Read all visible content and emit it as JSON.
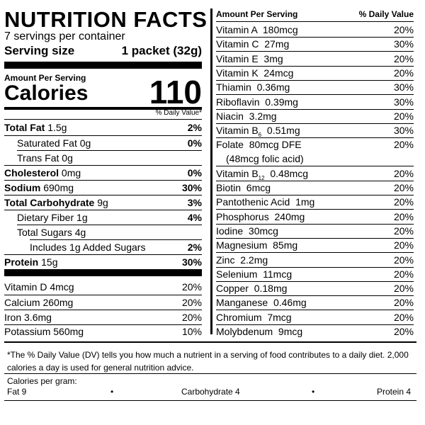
{
  "label": {
    "title": "NUTRITION FACTS",
    "servings_per_container": "7 servings per container",
    "serving_size_label": "Serving size",
    "serving_size_value": "1 packet (32g)",
    "amount_per_serving": "Amount Per Serving",
    "calories_label": "Calories",
    "calories_value": "110",
    "dv_header": "% Daily Value*",
    "nutrients": [
      {
        "name": "Total Fat",
        "amount": "1.5g",
        "dv": "2%"
      },
      {
        "name": "Saturated Fat",
        "amount": "0g",
        "dv": "0%"
      },
      {
        "name": "Trans Fat",
        "amount": "0g",
        "dv": ""
      },
      {
        "name": "Cholesterol",
        "amount": "0mg",
        "dv": "0%"
      },
      {
        "name": "Sodium",
        "amount": "690mg",
        "dv": "30%"
      },
      {
        "name": "Total Carbohydrate",
        "amount": "9g",
        "dv": "3%"
      },
      {
        "name": "Dietary Fiber",
        "amount": "1g",
        "dv": "4%"
      },
      {
        "name": "Total Sugars",
        "amount": "4g",
        "dv": ""
      },
      {
        "name": "Includes 1g Added Sugars",
        "amount": "",
        "dv": "2%"
      },
      {
        "name": "Protein",
        "amount": "15g",
        "dv": "30%"
      }
    ],
    "vitamins_left": [
      {
        "name": "Vitamin D 4mcg",
        "dv": "20%"
      },
      {
        "name": "Calcium 260mg",
        "dv": "20%"
      },
      {
        "name": "Iron 3.6mg",
        "dv": "20%"
      },
      {
        "name": "Potassium 560mg",
        "dv": "10%"
      }
    ],
    "right_header": {
      "amount": "Amount Per Serving",
      "dv": "% Daily Value"
    },
    "vitamins_right": [
      {
        "name": "Vitamin A  180mcg",
        "dv": "20%"
      },
      {
        "name": "Vitamin C  27mg",
        "dv": "30%"
      },
      {
        "name": "Vitamin E  3mg",
        "dv": "20%"
      },
      {
        "name": "Vitamin K  24mcg",
        "dv": "20%"
      },
      {
        "name": "Thiamin  0.36mg",
        "dv": "30%"
      },
      {
        "name": "Riboflavin  0.39mg",
        "dv": "30%"
      },
      {
        "name": "Niacin  3.2mg",
        "dv": "20%"
      },
      {
        "name": "Vitamin B",
        "sub": "6",
        "rest": "  0.51mg",
        "dv": "30%"
      },
      {
        "name": "Folate  80mcg DFE",
        "line2": "(48mcg folic acid)",
        "dv": "20%"
      },
      {
        "name": "Vitamin B",
        "sub": "12",
        "rest": "  0.48mcg",
        "dv": "20%"
      },
      {
        "name": "Biotin  6mcg",
        "dv": "20%"
      },
      {
        "name": "Pantothenic Acid  1mg",
        "dv": "20%"
      },
      {
        "name": "Phosphorus  240mg",
        "dv": "20%"
      },
      {
        "name": "Iodine  30mcg",
        "dv": "20%"
      },
      {
        "name": "Magnesium  85mg",
        "dv": "20%"
      },
      {
        "name": "Zinc  2.2mg",
        "dv": "20%"
      },
      {
        "name": "Selenium  11mcg",
        "dv": "20%"
      },
      {
        "name": "Copper  0.18mg",
        "dv": "20%"
      },
      {
        "name": "Manganese  0.46mg",
        "dv": "20%"
      },
      {
        "name": "Chromium  7mcg",
        "dv": "20%"
      },
      {
        "name": "Molybdenum  9mcg",
        "dv": "20%"
      }
    ],
    "footnote": "*The % Daily Value (DV) tells you how much a nutrient in a serving of food contributes to a daily diet. 2,000 calories a day is used for general nutrition advice.",
    "calories_per_gram_label": "Calories per gram:",
    "calories_per_gram": {
      "fat": "Fat 9",
      "carb": "Carbohydrate 4",
      "protein": "Protein 4",
      "separator": "•"
    }
  }
}
